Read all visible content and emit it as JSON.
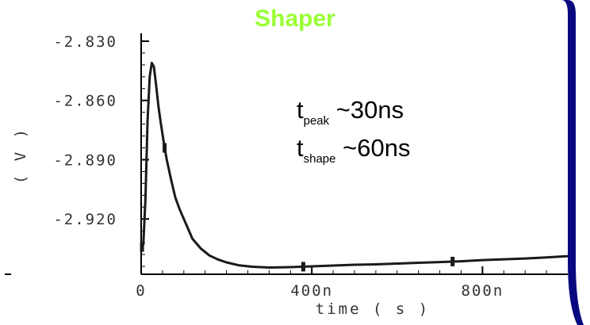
{
  "chart_data": {
    "type": "line",
    "title": "Shaper",
    "title_color": "#99ff33",
    "xlabel": "time ( s )",
    "ylabel": "( V )",
    "xlim": [
      0,
      1000
    ],
    "ylim": [
      -2.948,
      -2.826
    ],
    "x_ticks": [
      {
        "value": 0,
        "label": "0"
      },
      {
        "value": 400,
        "label": "400n"
      },
      {
        "value": 800,
        "label": "800n"
      }
    ],
    "y_ticks": [
      {
        "value": -2.83,
        "label": "-2.830"
      },
      {
        "value": -2.86,
        "label": "-2.860"
      },
      {
        "value": -2.89,
        "label": "-2.890"
      },
      {
        "value": -2.92,
        "label": "-2.920"
      }
    ],
    "series": [
      {
        "color": "#1a1a1a",
        "x": [
          0,
          5,
          10,
          15,
          20,
          25,
          30,
          35,
          40,
          45,
          50,
          55,
          60,
          70,
          80,
          90,
          100,
          120,
          140,
          160,
          180,
          200,
          230,
          260,
          300,
          350,
          400,
          450,
          500,
          550,
          600,
          650,
          700,
          750,
          800,
          850,
          900,
          950,
          1000
        ],
        "y": [
          -2.935,
          -2.933,
          -2.91,
          -2.87,
          -2.848,
          -2.841,
          -2.843,
          -2.852,
          -2.862,
          -2.87,
          -2.877,
          -2.884,
          -2.89,
          -2.9,
          -2.909,
          -2.915,
          -2.92,
          -2.93,
          -2.935,
          -2.9385,
          -2.9405,
          -2.942,
          -2.9435,
          -2.9442,
          -2.9446,
          -2.9444,
          -2.944,
          -2.9436,
          -2.9432,
          -2.943,
          -2.9426,
          -2.9422,
          -2.9418,
          -2.9414,
          -2.9408,
          -2.9404,
          -2.94,
          -2.9395,
          -2.9388
        ],
        "markers_x": [
          2,
          55,
          380,
          730
        ]
      }
    ],
    "annotations": [
      {
        "main": "t",
        "sub": "peak",
        "rest": " ~30ns"
      },
      {
        "main": "t",
        "sub": "shape",
        "rest": " ~60ns"
      }
    ],
    "decoration_color": "#0a0a80"
  }
}
